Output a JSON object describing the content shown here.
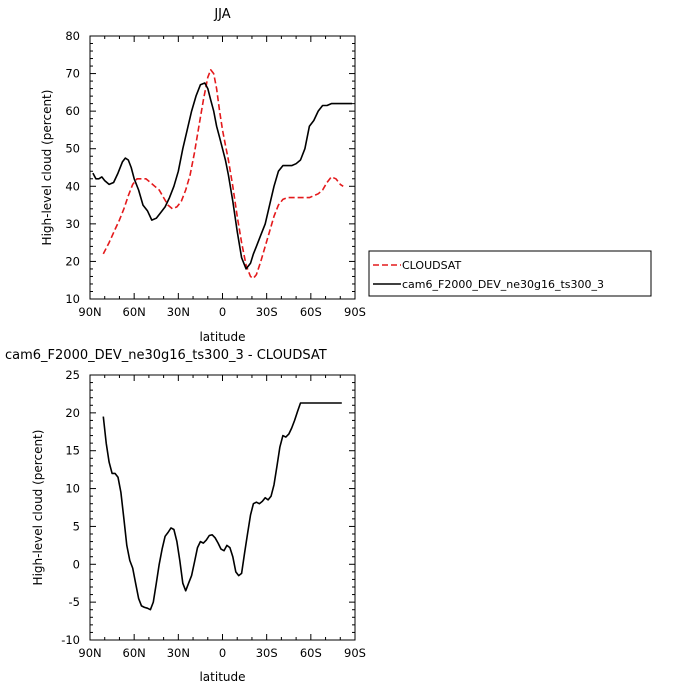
{
  "chart_data": [
    {
      "type": "line",
      "title": "JJA",
      "xlabel": "latitude",
      "ylabel": "High-level cloud (percent)",
      "xlim": [
        90,
        -90
      ],
      "ylim": [
        10,
        80
      ],
      "x_ticks": [
        90,
        60,
        30,
        0,
        -30,
        -60,
        -90
      ],
      "x_tick_labels": [
        "90N",
        "60N",
        "30N",
        "0",
        "30S",
        "60S",
        "90S"
      ],
      "y_ticks": [
        10,
        20,
        30,
        40,
        50,
        60,
        70,
        80
      ],
      "y_tick_labels": [
        "10",
        "20",
        "30",
        "40",
        "50",
        "60",
        "70",
        "80"
      ],
      "legend": "right-outside",
      "series": [
        {
          "name": "CLOUDSAT",
          "color": "#e41a1c",
          "dash": "dashed",
          "x": [
            81,
            77,
            73,
            70,
            67,
            64,
            61,
            58,
            55,
            52,
            49,
            46,
            43,
            40,
            37,
            34,
            31,
            28,
            25,
            22,
            19,
            16,
            13,
            10,
            8,
            6,
            4,
            2,
            0,
            -2,
            -4,
            -7,
            -10,
            -13,
            -16,
            -19,
            -21,
            -23,
            -26,
            -29,
            -32,
            -35,
            -38,
            -41,
            -44,
            -47,
            -50,
            -53,
            -56,
            -59,
            -62,
            -65,
            -68,
            -71,
            -74,
            -77,
            -80,
            -82
          ],
          "y": [
            22,
            25,
            28.5,
            31,
            34,
            37.5,
            40.5,
            42,
            42,
            42,
            41,
            40,
            39,
            37,
            35,
            34,
            34.5,
            36,
            39,
            43,
            49,
            56,
            63,
            69,
            71,
            70,
            66,
            60,
            55,
            51,
            47,
            40,
            32,
            25,
            19,
            16,
            15.5,
            16.5,
            20,
            24,
            28,
            32,
            35,
            36.5,
            37,
            37,
            37,
            37,
            37,
            37,
            37.5,
            38,
            39,
            41,
            42.5,
            42,
            40.5,
            40
          ]
        },
        {
          "name": "cam6_F2000_DEV_ne30g16_ts300_3",
          "color": "#000000",
          "dash": "solid",
          "x": [
            88,
            86,
            84,
            82,
            80,
            77,
            74,
            71,
            68,
            66,
            64,
            62,
            60,
            57,
            54,
            51,
            48,
            45,
            42,
            39,
            36,
            33,
            30,
            27,
            24,
            21,
            18,
            15,
            12,
            10,
            8,
            6,
            4,
            2,
            0,
            -2,
            -4,
            -7,
            -10,
            -13,
            -16,
            -19,
            -21,
            -23,
            -26,
            -29,
            -32,
            -35,
            -38,
            -41,
            -44,
            -47,
            -50,
            -53,
            -56,
            -59,
            -62,
            -65,
            -68,
            -71,
            -74,
            -77,
            -80,
            -83,
            -86,
            -88
          ],
          "y": [
            43.5,
            42,
            42,
            42.5,
            41.5,
            40.5,
            41,
            43.5,
            46.5,
            47.5,
            47,
            45,
            42,
            39,
            35,
            33.5,
            31,
            31.5,
            33,
            34.5,
            37,
            40,
            44,
            50,
            55,
            60,
            64,
            67,
            67.5,
            66,
            63,
            60,
            56,
            53,
            50,
            47,
            43,
            36,
            28,
            21,
            18,
            19.5,
            22,
            24,
            27,
            30,
            35,
            40,
            44,
            45.5,
            45.5,
            45.5,
            46,
            47,
            50,
            56,
            57.5,
            60,
            61.5,
            61.5,
            62,
            62,
            62,
            62,
            62,
            62
          ]
        }
      ]
    },
    {
      "type": "line",
      "title": "cam6_F2000_DEV_ne30g16_ts300_3 - CLOUDSAT",
      "xlabel": "latitude",
      "ylabel": "High-level cloud (percent)",
      "xlim": [
        90,
        -90
      ],
      "ylim": [
        -10,
        25
      ],
      "x_ticks": [
        90,
        60,
        30,
        0,
        -30,
        -60,
        -90
      ],
      "x_tick_labels": [
        "90N",
        "60N",
        "30N",
        "0",
        "30S",
        "60S",
        "90S"
      ],
      "y_ticks": [
        -10,
        -5,
        0,
        5,
        10,
        15,
        20,
        25
      ],
      "y_tick_labels": [
        "-10",
        "-5",
        "0",
        "5",
        "10",
        "15",
        "20",
        "25"
      ],
      "series": [
        {
          "color": "#000000",
          "dash": "solid",
          "x": [
            81,
            79,
            77,
            75,
            73,
            71,
            69,
            67,
            65,
            63,
            61,
            59,
            57,
            55,
            53,
            51,
            49,
            47,
            45,
            43,
            41,
            39,
            37,
            35,
            33,
            31,
            29,
            27,
            25,
            23,
            21,
            19,
            17,
            15,
            13,
            11,
            9,
            7,
            5,
            3,
            1,
            -1,
            -3,
            -5,
            -7,
            -9,
            -11,
            -13,
            -15,
            -17,
            -19,
            -21,
            -23,
            -25,
            -27,
            -29,
            -31,
            -33,
            -35,
            -37,
            -39,
            -41,
            -43,
            -45,
            -47,
            -49,
            -51,
            -53,
            -55,
            -57,
            -59,
            -61,
            -63,
            -65,
            -67,
            -69,
            -71,
            -73,
            -75,
            -77,
            -79,
            -81
          ],
          "y": [
            19.5,
            16,
            13.5,
            12,
            12,
            11.5,
            9.5,
            6,
            2.5,
            0.5,
            -0.5,
            -2.5,
            -4.5,
            -5.5,
            -5.7,
            -5.8,
            -6,
            -5,
            -2.5,
            0,
            2,
            3.7,
            4.2,
            4.8,
            4.6,
            3,
            0.5,
            -2.5,
            -3.5,
            -2.5,
            -1.5,
            0.3,
            2.2,
            3,
            2.8,
            3.2,
            3.8,
            3.9,
            3.5,
            2.8,
            2,
            1.8,
            2.5,
            2.2,
            1,
            -1,
            -1.5,
            -1.2,
            1.5,
            4,
            6.5,
            8,
            8.2,
            8,
            8.3,
            8.8,
            8.5,
            9,
            10.5,
            13,
            15.5,
            17,
            16.8,
            17.2,
            18,
            19,
            20.2,
            21.3,
            21.3,
            21.3,
            21.3,
            21.3,
            21.3,
            21.3,
            21.3,
            21.3,
            21.3,
            21.3,
            21.3,
            21.3,
            21.3,
            21.3
          ]
        }
      ]
    }
  ]
}
